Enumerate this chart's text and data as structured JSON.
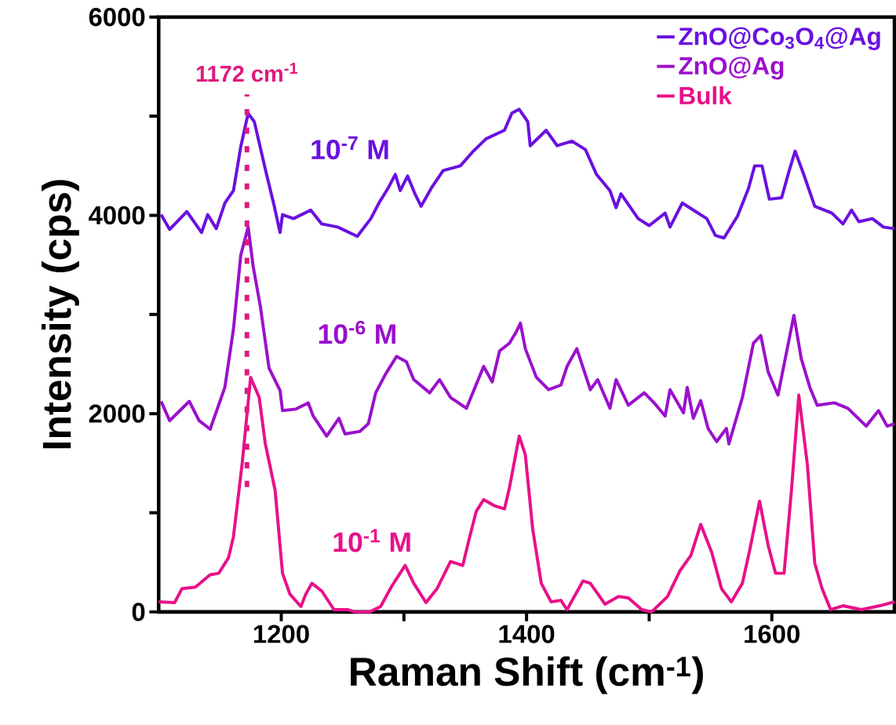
{
  "chart_data": {
    "type": "line",
    "xlabel": "Raman Shift (cm$^{-1}$)",
    "ylabel": "Intensity (cps)",
    "xlim": [
      1100,
      1700
    ],
    "ylim": [
      0,
      6000
    ],
    "xticks": [
      1200,
      {
        "value": 1300,
        "label": null
      },
      1400,
      {
        "value": 1500,
        "label": null
      },
      1600
    ],
    "yticks": [
      0,
      {
        "value": 1000,
        "label": null
      },
      2000,
      {
        "value": 3000,
        "label": null
      },
      4000,
      {
        "value": 5000,
        "label": null
      },
      6000
    ],
    "legend": "top right",
    "grid": false,
    "line_style": "solid",
    "series": [
      {
        "name": "ZnO@Co$_{3}$O$_{4}$@Ag",
        "color": "#6a10e0",
        "x": [
          1102,
          1109,
          1123,
          1135,
          1140,
          1147,
          1154,
          1161,
          1167,
          1173,
          1178,
          1188,
          1194,
          1199,
          1201,
          1210,
          1224,
          1233,
          1246,
          1262,
          1273,
          1280,
          1287,
          1293,
          1297,
          1303,
          1309,
          1314,
          1323,
          1332,
          1346,
          1356,
          1367,
          1382,
          1388,
          1394,
          1401,
          1403,
          1416,
          1425,
          1437,
          1448,
          1457,
          1468,
          1473,
          1477,
          1491,
          1500,
          1513,
          1517,
          1527,
          1536,
          1547,
          1554,
          1561,
          1572,
          1581,
          1586,
          1592,
          1598,
          1608,
          1614,
          1619,
          1626,
          1635,
          1649,
          1658,
          1665,
          1671,
          1682,
          1691,
          1700
        ],
        "values": [
          4007,
          3858,
          4038,
          3827,
          4007,
          3866,
          4124,
          4249,
          4694,
          5030,
          4944,
          4413,
          4108,
          3827,
          4007,
          3967,
          4053,
          3913,
          3882,
          3788,
          3967,
          4132,
          4272,
          4413,
          4249,
          4397,
          4217,
          4092,
          4288,
          4452,
          4499,
          4639,
          4772,
          4858,
          5030,
          5069,
          4944,
          4702,
          4858,
          4702,
          4749,
          4663,
          4413,
          4249,
          4077,
          4217,
          3967,
          3897,
          4022,
          3882,
          4124,
          4053,
          3967,
          3796,
          3772,
          3991,
          4272,
          4499,
          4499,
          4163,
          4178,
          4444,
          4647,
          4413,
          4092,
          4022,
          3913,
          4053,
          3936,
          3967,
          3882,
          3866
        ]
      },
      {
        "name": "ZnO@Ag",
        "color": "#9a10cc",
        "x": [
          1102,
          1109,
          1125,
          1133,
          1142,
          1154,
          1161,
          1167,
          1173,
          1177,
          1183,
          1190,
          1199,
          1201,
          1212,
          1222,
          1226,
          1237,
          1247,
          1252,
          1264,
          1271,
          1277,
          1285,
          1294,
          1302,
          1308,
          1321,
          1329,
          1338,
          1351,
          1365,
          1372,
          1378,
          1386,
          1391,
          1395,
          1399,
          1408,
          1418,
          1428,
          1433,
          1441,
          1452,
          1458,
          1468,
          1473,
          1483,
          1496,
          1504,
          1513,
          1517,
          1528,
          1531,
          1536,
          1542,
          1548,
          1555,
          1563,
          1565,
          1576,
          1585,
          1591,
          1597,
          1605,
          1618,
          1624,
          1631,
          1637,
          1651,
          1662,
          1677,
          1687,
          1694,
          1700
        ],
        "values": [
          2124,
          1929,
          2124,
          1929,
          1843,
          2265,
          2851,
          3600,
          3882,
          3491,
          3077,
          2460,
          2234,
          2031,
          2046,
          2109,
          1976,
          1773,
          1953,
          1796,
          1820,
          1898,
          2210,
          2398,
          2577,
          2523,
          2343,
          2210,
          2343,
          2163,
          2054,
          2476,
          2320,
          2632,
          2710,
          2812,
          2913,
          2655,
          2366,
          2241,
          2288,
          2476,
          2655,
          2241,
          2343,
          2054,
          2343,
          2085,
          2210,
          2109,
          1976,
          2241,
          2007,
          2265,
          1953,
          2132,
          1851,
          1718,
          1851,
          1695,
          2163,
          2710,
          2788,
          2421,
          2187,
          2991,
          2554,
          2265,
          2085,
          2109,
          2054,
          1874,
          2031,
          1874,
          1898
        ]
      },
      {
        "name": "Bulk",
        "color": "#e8108a",
        "x": [
          1100,
          1113,
          1119,
          1130,
          1142,
          1149,
          1157,
          1161,
          1168,
          1175,
          1182,
          1187,
          1195,
          1201,
          1207,
          1216,
          1220,
          1225,
          1233,
          1243,
          1254,
          1260,
          1272,
          1281,
          1290,
          1301,
          1308,
          1318,
          1327,
          1338,
          1348,
          1353,
          1359,
          1365,
          1374,
          1382,
          1386,
          1394,
          1399,
          1405,
          1412,
          1420,
          1428,
          1433,
          1446,
          1452,
          1464,
          1475,
          1483,
          1494,
          1502,
          1515,
          1525,
          1534,
          1542,
          1551,
          1559,
          1567,
          1576,
          1582,
          1590,
          1597,
          1603,
          1610,
          1616,
          1622,
          1629,
          1635,
          1641,
          1648,
          1658,
          1673,
          1688,
          1700
        ],
        "values": [
          102,
          94,
          234,
          250,
          375,
          390,
          547,
          758,
          1484,
          2366,
          2163,
          1695,
          1226,
          390,
          180,
          55,
          180,
          289,
          211,
          23,
          23,
          0,
          0,
          55,
          258,
          469,
          289,
          94,
          234,
          508,
          469,
          726,
          1015,
          1132,
          1070,
          1039,
          1250,
          1773,
          1585,
          836,
          289,
          102,
          117,
          23,
          312,
          289,
          78,
          156,
          141,
          23,
          0,
          156,
          414,
          570,
          883,
          601,
          234,
          102,
          289,
          625,
          1117,
          672,
          390,
          390,
          1226,
          2187,
          1484,
          492,
          234,
          23,
          62,
          23,
          62,
          102
        ]
      }
    ],
    "ref_lines": [
      {
        "axis": "x",
        "value": 1172,
        "label": "1172 cm$^{-1}$",
        "color": "#e0197d",
        "line_style": "dotted"
      }
    ],
    "annotations": [
      "10$^{-7}$ M",
      "10$^{-6}$ M",
      "10$^{-1}$ M"
    ]
  }
}
